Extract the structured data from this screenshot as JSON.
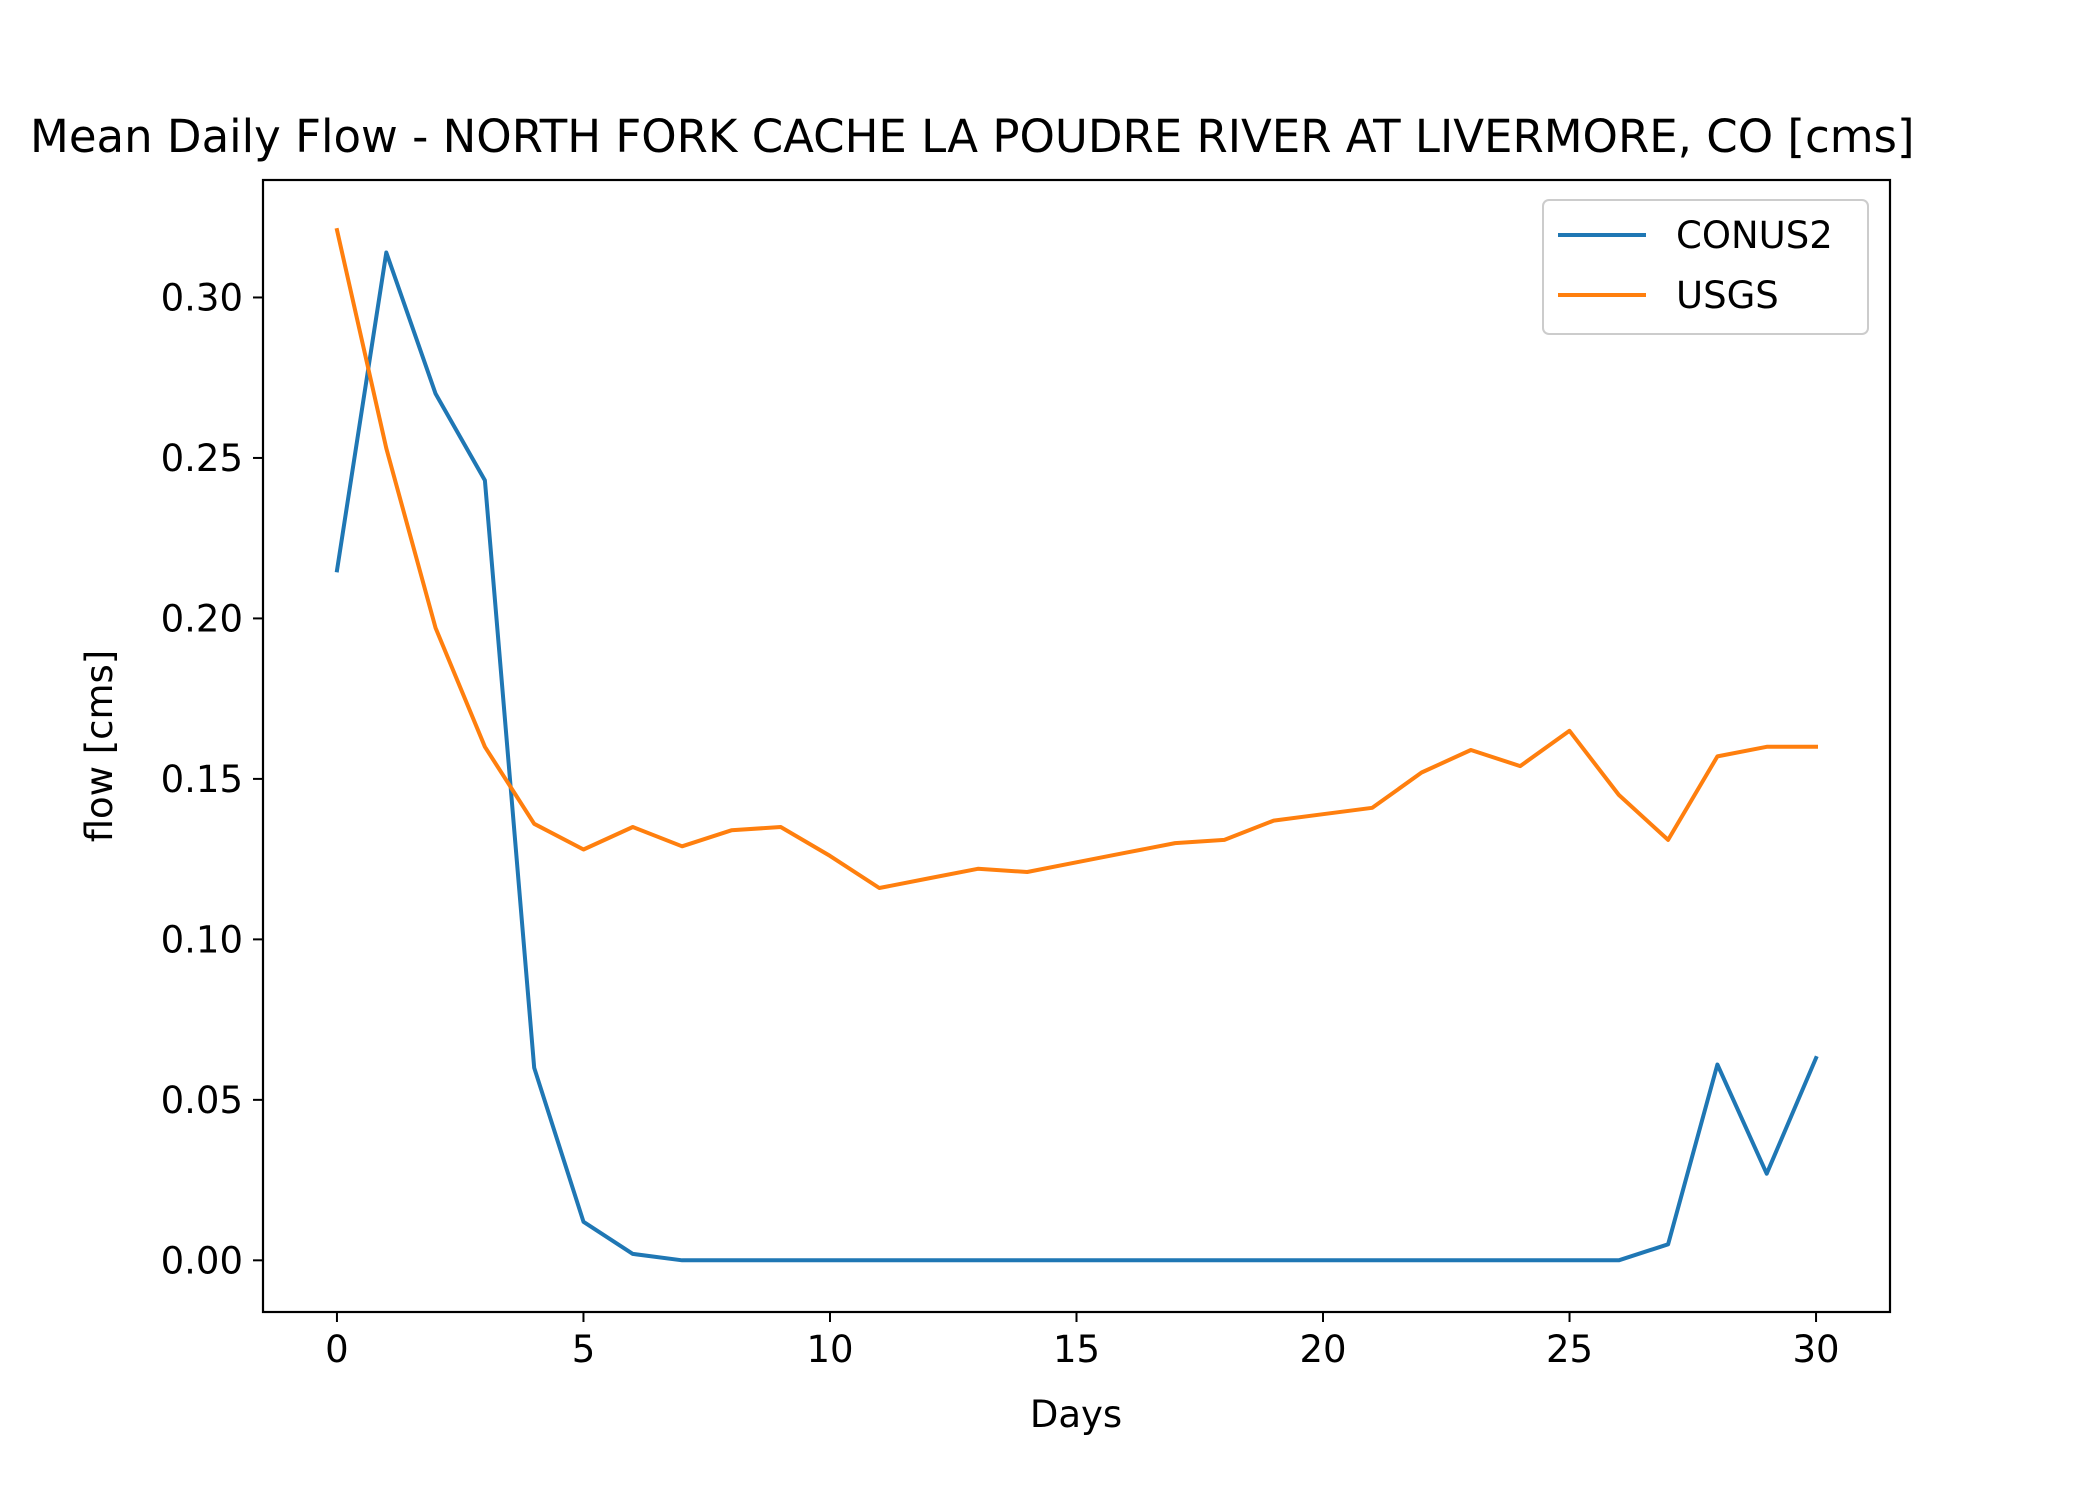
{
  "chart_data": {
    "type": "line",
    "title": "Mean Daily Flow - NORTH FORK CACHE LA POUDRE RIVER AT LIVERMORE, CO [cms]",
    "xlabel": "Days",
    "ylabel": "flow [cms]",
    "xlim": [
      -1.5,
      31.5
    ],
    "ylim": [
      -0.0161,
      0.3366
    ],
    "xticks": [
      0,
      5,
      10,
      15,
      20,
      25,
      30
    ],
    "yticks": [
      0.0,
      0.05,
      0.1,
      0.15,
      0.2,
      0.25,
      0.3
    ],
    "ytick_labels": [
      "0.00",
      "0.05",
      "0.10",
      "0.15",
      "0.20",
      "0.25",
      "0.30"
    ],
    "grid": false,
    "legend_position": "top-right",
    "x": [
      0,
      1,
      2,
      3,
      4,
      5,
      6,
      7,
      8,
      9,
      10,
      11,
      12,
      13,
      14,
      15,
      16,
      17,
      18,
      19,
      20,
      21,
      22,
      23,
      24,
      25,
      26,
      27,
      28,
      29,
      30
    ],
    "series": [
      {
        "name": "CONUS2",
        "color": "#1f77b4",
        "values": [
          0.215,
          0.314,
          0.27,
          0.243,
          0.06,
          0.012,
          0.002,
          0.0,
          0.0,
          0.0,
          0.0,
          0.0,
          0.0,
          0.0,
          0.0,
          0.0,
          0.0,
          0.0,
          0.0,
          0.0,
          0.0,
          0.0,
          0.0,
          0.0,
          0.0,
          0.0,
          0.0,
          0.005,
          0.061,
          0.027,
          0.063
        ]
      },
      {
        "name": "USGS",
        "color": "#ff7f0e",
        "values": [
          0.321,
          0.253,
          0.197,
          0.16,
          0.136,
          0.128,
          0.135,
          0.129,
          0.134,
          0.135,
          0.126,
          0.116,
          0.119,
          0.122,
          0.121,
          0.124,
          0.127,
          0.13,
          0.131,
          0.137,
          0.139,
          0.141,
          0.152,
          0.159,
          0.154,
          0.165,
          0.145,
          0.131,
          0.157,
          0.16,
          0.16
        ]
      }
    ]
  }
}
